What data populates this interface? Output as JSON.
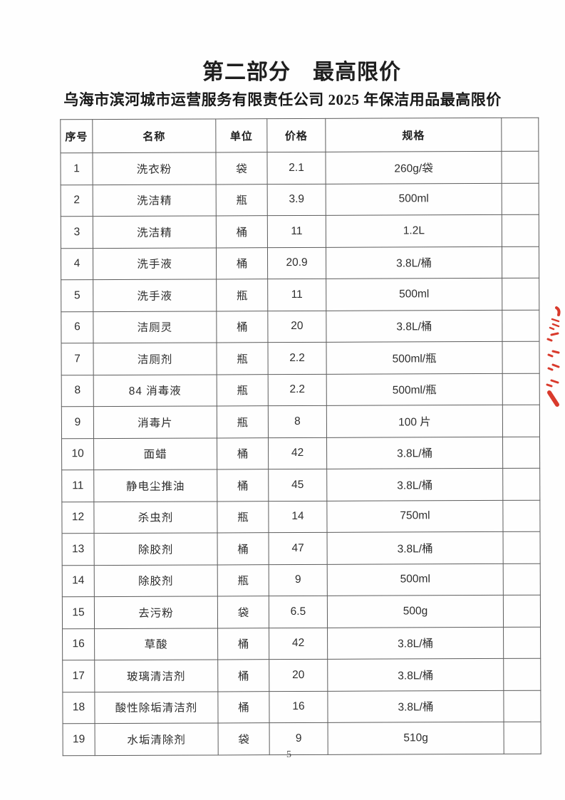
{
  "page": {
    "title": "第二部分　最高限价",
    "subtitle": "乌海市滨河城市运营服务有限责任公司 2025 年保洁用品最高限价",
    "page_number": "5"
  },
  "table": {
    "headers": [
      "序号",
      "名称",
      "单位",
      "价格",
      "规格",
      ""
    ],
    "rows": [
      [
        "1",
        "洗衣粉",
        "袋",
        "2.1",
        "260g/袋"
      ],
      [
        "2",
        "洗洁精",
        "瓶",
        "3.9",
        "500ml"
      ],
      [
        "3",
        "洗洁精",
        "桶",
        "11",
        "1.2L"
      ],
      [
        "4",
        "洗手液",
        "桶",
        "20.9",
        "3.8L/桶"
      ],
      [
        "5",
        "洗手液",
        "瓶",
        "11",
        "500ml"
      ],
      [
        "6",
        "洁厕灵",
        "桶",
        "20",
        "3.8L/桶"
      ],
      [
        "7",
        "洁厕剂",
        "瓶",
        "2.2",
        "500ml/瓶"
      ],
      [
        "8",
        "84 消毒液",
        "瓶",
        "2.2",
        "500ml/瓶"
      ],
      [
        "9",
        "消毒片",
        "瓶",
        "8",
        "100 片"
      ],
      [
        "10",
        "面蜡",
        "桶",
        "42",
        "3.8L/桶"
      ],
      [
        "11",
        "静电尘推油",
        "桶",
        "45",
        "3.8L/桶"
      ],
      [
        "12",
        "杀虫剂",
        "瓶",
        "14",
        "750ml"
      ],
      [
        "13",
        "除胶剂",
        "桶",
        "47",
        "3.8L/桶"
      ],
      [
        "14",
        "除胶剂",
        "瓶",
        "9",
        "500ml"
      ],
      [
        "15",
        "去污粉",
        "袋",
        "6.5",
        "500g"
      ],
      [
        "16",
        "草酸",
        "桶",
        "42",
        "3.8L/桶"
      ],
      [
        "17",
        "玻璃清洁剂",
        "桶",
        "20",
        "3.8L/桶"
      ],
      [
        "18",
        "酸性除垢清洁剂",
        "桶",
        "16",
        "3.8L/桶"
      ],
      [
        "19",
        "水垢清除剂",
        "袋",
        "9",
        "510g"
      ]
    ]
  },
  "annotations": {
    "red_ink_color": "#d93a2c",
    "description": "partial red handwriting cut off at right page edge"
  }
}
